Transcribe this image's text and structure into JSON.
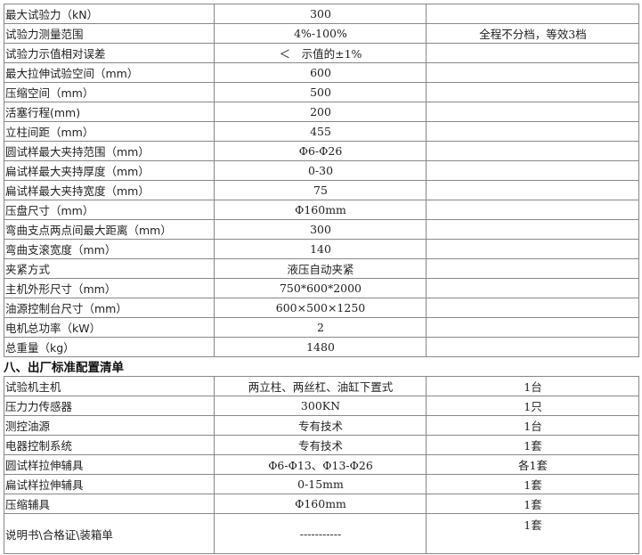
{
  "specs": [
    [
      "最大试验力（kN）",
      "300",
      ""
    ],
    [
      "试验力测量范围",
      "4%-100%",
      "全程不分档，等效3档"
    ],
    [
      "试验力示值相对误差",
      "＜　示值的±1%",
      ""
    ],
    [
      "最大拉伸试验空间（mm）",
      "600",
      ""
    ],
    [
      "压缩空间（mm）",
      "500",
      ""
    ],
    [
      "活塞行程(mm)",
      "200",
      ""
    ],
    [
      "立柱间距（mm）",
      "455",
      ""
    ],
    [
      "圆试样最大夹持范围（mm）",
      "Φ6-Φ26",
      ""
    ],
    [
      "扁试样最大夹持厚度（mm）",
      "0-30",
      ""
    ],
    [
      "扁试样最大夹持宽度（mm）",
      "75",
      ""
    ],
    [
      "压盘尺寸（mm）",
      "Φ160mm",
      ""
    ],
    [
      "弯曲支点两点间最大距离（mm）",
      "300",
      ""
    ],
    [
      "弯曲支滚宽度（mm）",
      "140",
      ""
    ],
    [
      "夹紧方式",
      "液压自动夹紧",
      ""
    ],
    [
      "主机外形尺寸（mm）",
      "750*600*2000",
      ""
    ],
    [
      "油源控制台尺寸（mm）",
      "600×500×1250",
      ""
    ],
    [
      "电机总功率（kW）",
      "2",
      ""
    ],
    [
      "总重量（kg）",
      "1480",
      ""
    ]
  ],
  "config_heading": "八、出厂标准配置清单",
  "config": [
    [
      "试验机主机",
      "两立柱、两丝杠、油缸下置式",
      "1台"
    ],
    [
      "压力力传感器",
      "300KN",
      "1只"
    ],
    [
      "测控油源",
      "专有技术",
      "1台"
    ],
    [
      "电器控制系统",
      "专有技术",
      "1套"
    ],
    [
      "圆试样拉伸辅具",
      "Φ6-Φ13、Φ13-Φ26",
      "各1套"
    ],
    [
      "扁试样拉伸辅具",
      "0-15mm",
      "1套"
    ],
    [
      "压缩辅具",
      "Φ160mm",
      "1套"
    ],
    [
      "说明书\\合格证\\装箱单",
      "-----------",
      "1套"
    ]
  ]
}
